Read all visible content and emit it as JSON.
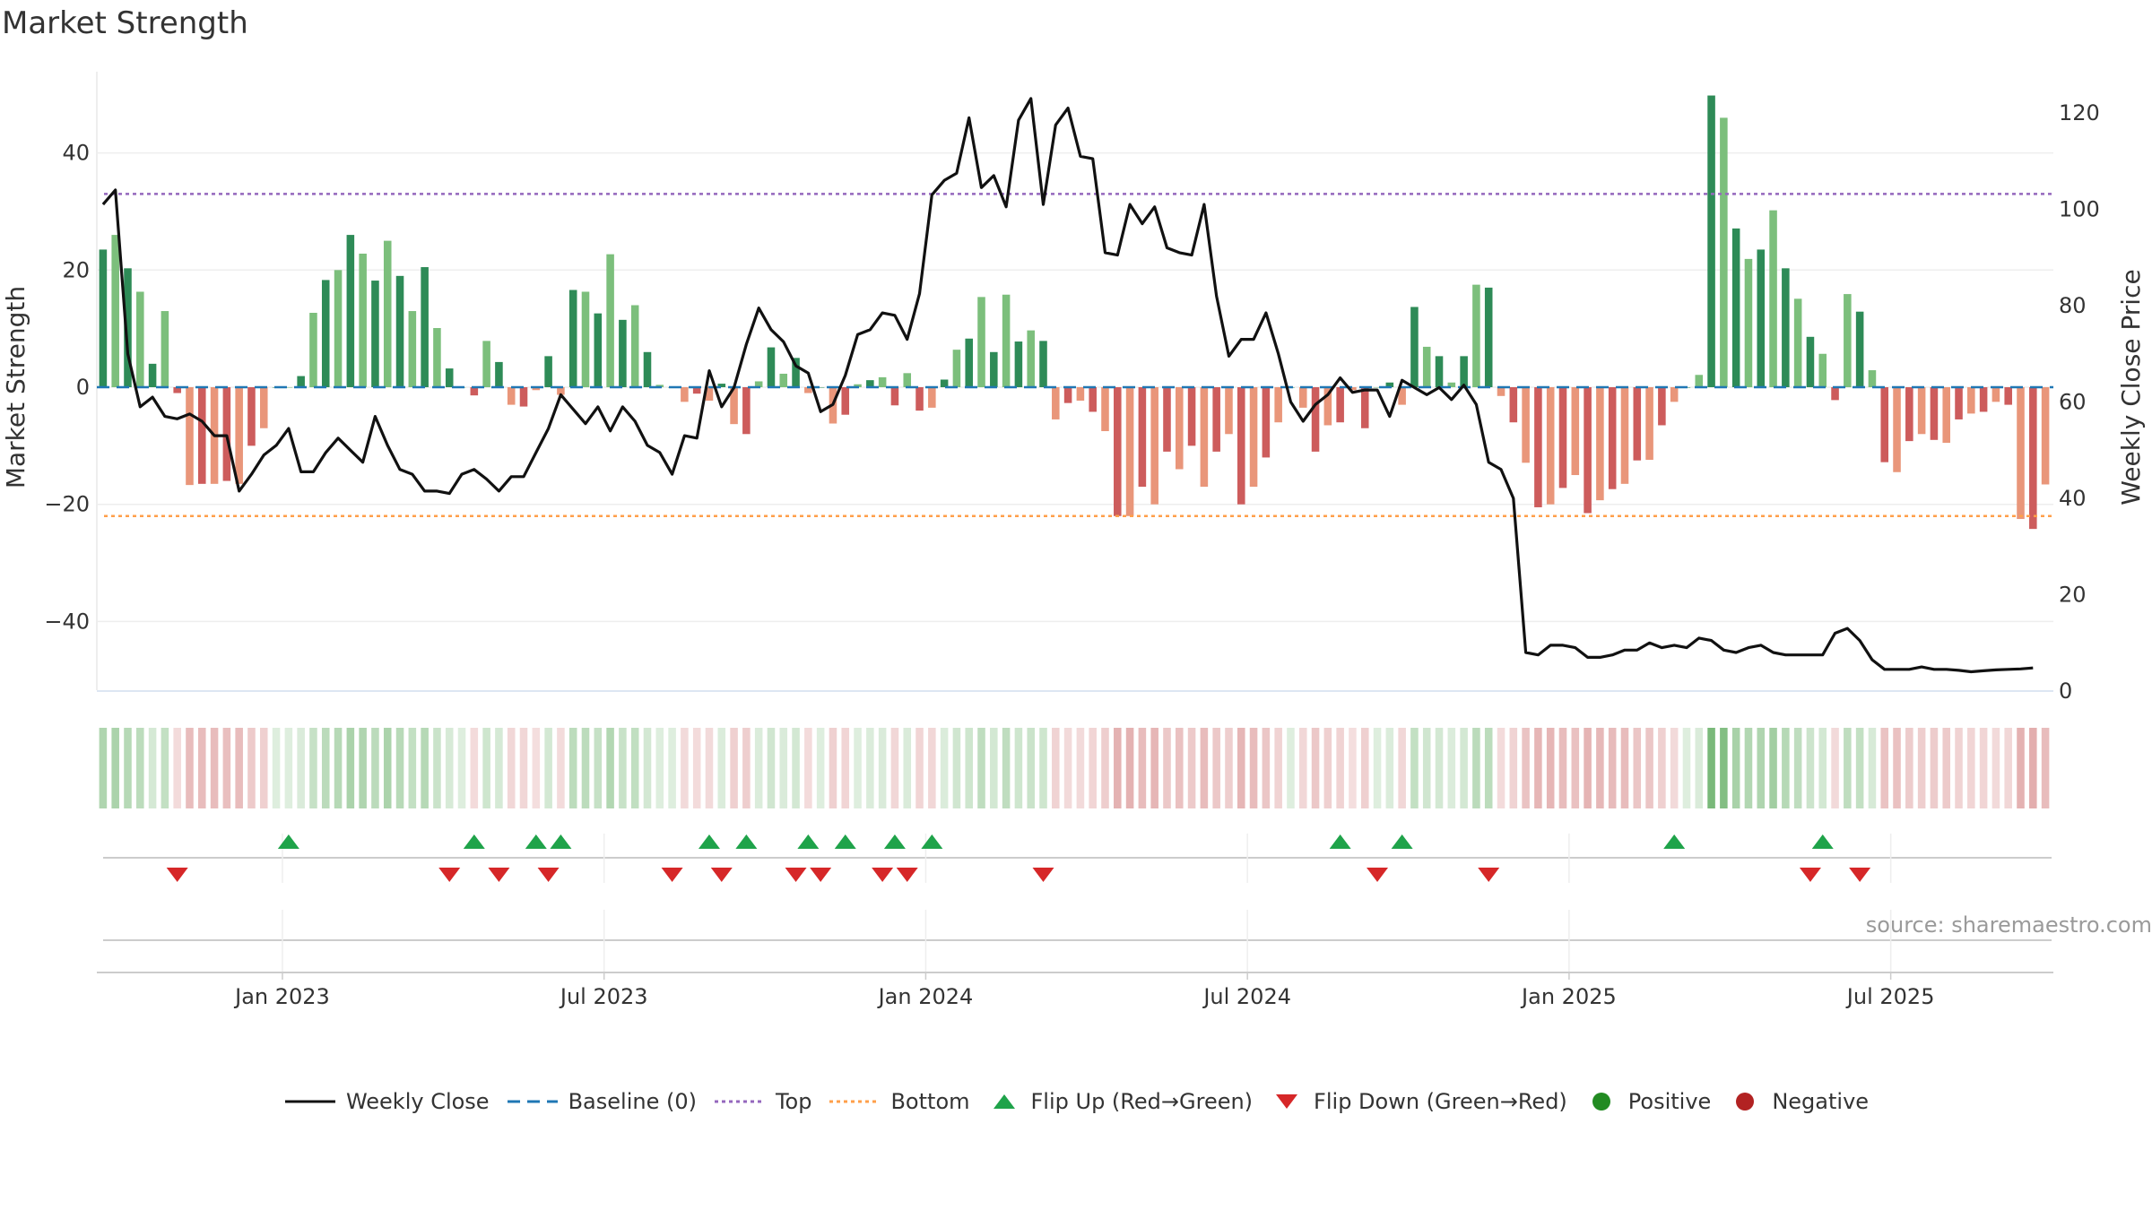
{
  "title": "Market Strength",
  "source": "source: sharemaestro.com",
  "chart_data": {
    "type": "bar",
    "y_left": {
      "label": "Market Strength",
      "ticks": [
        -40,
        -20,
        0,
        20,
        40
      ],
      "tick_labels": [
        "−40",
        "−20",
        "0",
        "20",
        "40"
      ],
      "range": [
        -52,
        55
      ]
    },
    "y_right": {
      "label": "Weekly Close Price",
      "ticks": [
        0,
        20,
        40,
        60,
        80,
        100,
        120
      ],
      "range": [
        -1.5,
        126
      ]
    },
    "x_ticks": [
      "Jan 2023",
      "Jul 2023",
      "Jan 2024",
      "Jul 2024",
      "Jan 2025",
      "Jul 2025"
    ],
    "x_tick_weeks": [
      14.5,
      40.5,
      66.5,
      92.5,
      118.5,
      144.5
    ],
    "top_line": 33,
    "bottom_line": -22,
    "baseline": 0,
    "strength": [
      23.5,
      26,
      20.3,
      16.3,
      4,
      13,
      -1,
      -16.7,
      -16.5,
      -16.5,
      -16,
      -16.5,
      -10,
      -7,
      0,
      0,
      1.9,
      12.7,
      18.3,
      20,
      26,
      22.8,
      18.2,
      25,
      19,
      13,
      20.5,
      10.1,
      3.2,
      0,
      -1.4,
      7.9,
      4.3,
      -3,
      -3.3,
      -0.5,
      5.3,
      -1.3,
      16.6,
      16.3,
      12.6,
      22.7,
      11.5,
      14,
      6,
      0.4,
      0,
      -2.5,
      -1.1,
      -2.3,
      0.6,
      -6.3,
      -8,
      1,
      6.8,
      2.3,
      5,
      -1,
      0,
      -6.2,
      -4.7,
      0.5,
      1.2,
      1.7,
      -3.1,
      2.4,
      -4,
      -3.5,
      1.3,
      6.4,
      8.3,
      15.4,
      6,
      15.8,
      7.8,
      9.7,
      7.9,
      -5.5,
      -2.7,
      -2.3,
      -4.2,
      -7.5,
      -22,
      -22,
      -17,
      -20,
      -11,
      -14,
      -10,
      -17,
      -11,
      -8,
      -20,
      -17,
      -12,
      -6,
      0,
      -3.5,
      -11,
      -6.5,
      -6,
      -0.5,
      -7,
      0,
      0.8,
      -3,
      13.7,
      6.9,
      5.3,
      0.8,
      5.3,
      17.5,
      17,
      -1.5,
      -6,
      -12.9,
      -20.5,
      -20,
      -17.2,
      -15,
      -21.5,
      -19.3,
      -17.4,
      -16.5,
      -12.5,
      -12.4,
      -6.5,
      -2.5,
      0,
      2.1,
      49.8,
      46,
      27.1,
      21.9,
      23.5,
      30.2,
      20.3,
      15.1,
      8.6,
      5.7,
      -2.2,
      15.9,
      12.9,
      2.9,
      -12.8,
      -14.5,
      -9.2,
      -8,
      -9,
      -9.5,
      -5.5,
      -4.5,
      -4.2,
      -2.5,
      -3,
      -22.5,
      -24.2,
      -16.6
    ],
    "strength_label_note": "",
    "weekly_close": [
      101,
      104,
      70,
      59,
      61,
      57,
      56.5,
      57.5,
      56,
      53,
      53,
      41.5,
      45,
      49,
      51,
      54.5,
      45.5,
      45.5,
      49.5,
      52.5,
      50,
      47.5,
      57,
      51,
      46,
      45,
      41.5,
      41.5,
      41,
      45,
      46,
      44,
      41.5,
      44.5,
      44.5,
      49.5,
      54.5,
      61.5,
      58.5,
      55.5,
      59,
      54,
      59,
      56,
      51,
      49.5,
      45,
      53,
      52.5,
      66.5,
      59,
      63,
      72,
      79.5,
      75,
      72.5,
      67.5,
      66,
      58,
      59.5,
      65.5,
      74,
      75,
      78.5,
      78,
      73,
      82.5,
      103,
      106,
      107.5,
      119,
      104.5,
      107,
      100.5,
      118.5,
      123,
      101,
      117.5,
      121,
      111,
      110.5,
      91,
      90.5,
      101,
      97,
      100.5,
      92,
      91,
      90.5,
      101,
      82,
      69.5,
      73,
      73,
      78.5,
      70,
      60,
      56,
      59.5,
      61.5,
      65,
      62,
      62.5,
      62.5,
      57,
      64.5,
      63,
      61.5,
      63,
      60.5,
      63.5,
      59.5,
      47.5,
      46,
      40,
      8,
      7.5,
      9.5,
      9.5,
      9,
      7,
      7,
      7.5,
      8.5,
      8.5,
      10,
      9,
      9.5,
      9,
      11,
      10.5,
      8.5,
      8,
      9,
      9.5,
      8,
      7.5,
      7.5,
      7.5,
      7.5,
      12,
      13,
      10.5,
      6.5,
      4.5,
      4.5,
      4.5,
      5,
      4.5,
      4.5,
      4.3,
      4,
      4.2,
      4.4,
      4.5,
      4.6,
      4.8
    ],
    "flip_up_weeks": [
      15,
      30,
      35,
      37,
      49,
      52,
      57,
      60,
      64,
      67,
      100,
      105,
      127,
      139
    ],
    "flip_down_weeks": [
      6,
      28,
      32,
      36,
      46,
      50,
      56,
      58,
      63,
      65,
      76,
      103,
      112,
      138,
      142
    ],
    "series_names": [
      "Weekly Close",
      "Baseline (0)",
      "Top",
      "Bottom",
      "Flip Up (Red→Green)",
      "Flip Down (Green→Red)",
      "Positive",
      "Negative"
    ],
    "colors": {
      "pos_dark": "#2e8b57",
      "pos_light": "#7cbf7c",
      "neg_dark": "#cd5c5c",
      "neg_light": "#e9967a",
      "close": "#111111",
      "baseline": "#1f77b4",
      "top": "#9467bd",
      "bottom": "#ff9f4a",
      "flip_up": "#1fa34a",
      "flip_down": "#d62728",
      "positive": "#228b22",
      "negative": "#b22222"
    }
  },
  "legend": [
    {
      "label": "Weekly Close",
      "icon": "solid-line-icon"
    },
    {
      "label": "Baseline (0)",
      "icon": "dashed-line-icon"
    },
    {
      "label": "Top",
      "icon": "dotted-line-icon"
    },
    {
      "label": "Bottom",
      "icon": "dotted-line-icon"
    },
    {
      "label": "Flip Up (Red→Green)",
      "icon": "triangle-up-icon"
    },
    {
      "label": "Flip Down (Green→Red)",
      "icon": "triangle-down-icon"
    },
    {
      "label": "Positive",
      "icon": "dot-icon"
    },
    {
      "label": "Negative",
      "icon": "dot-icon"
    }
  ]
}
